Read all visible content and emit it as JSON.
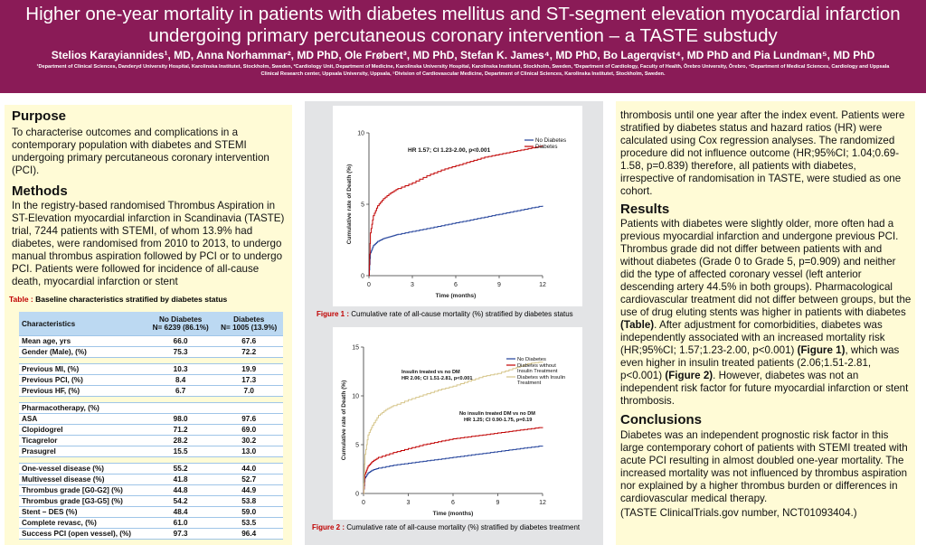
{
  "header": {
    "title": "Higher one-year mortality in patients with diabetes mellitus and ST-segment elevation myocardial infarction undergoing primary percutaneous coronary intervention – a TASTE substudy",
    "authors": "Stelios Karayiannides¹, MD, Anna Norhammar², MD PhD, Ole Frøbert³, MD PhD, Stefan K. James⁴, MD PhD, Bo Lagerqvist⁴, MD PhD and Pia Lundman⁵, MD PhD",
    "affiliations": "¹Department of Clinical Sciences, Danderyd University Hospital, Karolinska Institutet, Stockholm, Sweden, ²Cardiology Unit, Department of Medicine, Karolinska University Hospital, Karolinska Institutet, Stockholm, Sweden, ³Department of Cardiology, Faculty of Health, Örebro University, Örebro, ⁴Department of Medical Sciences, Cardiology and Uppsala Clinical Research center, Uppsala University, Uppsala, ⁵Division of Cardiovascular Medicine, Department of Clinical Sciences, Karolinska Institutet, Stockholm, Sweden."
  },
  "purpose": {
    "heading": "Purpose",
    "text": "To characterise outcomes and complications in a contemporary population with diabetes and STEMI undergoing primary percutaneous coronary intervention (PCI)."
  },
  "methods": {
    "heading": "Methods",
    "text": "In the registry-based randomised Thrombus Aspiration in ST-Elevation myocardial infarction in Scandinavia (TASTE) trial, 7244 patients with STEMI, of whom 13.9% had diabetes, were randomised from 2010 to 2013, to undergo manual thrombus aspiration followed by PCI or to undergo PCI. Patients were followed for incidence of all-cause death, myocardial infarction or stent",
    "continued": "thrombosis until one year after the index event. Patients were stratified by diabetes status and hazard ratios (HR) were calculated using Cox regression analyses. The randomized procedure did not influence outcome (HR;95%CI; 1.04;0.69-1.58, p=0.839) therefore, all patients with diabetes, irrespective of randomisation in TASTE, were studied as one cohort."
  },
  "table": {
    "caption_label": "Table :",
    "caption_text": "Baseline characteristics stratified by diabetes status",
    "col_char": "Characteristics",
    "col_nodm": "No Diabetes",
    "col_nodm_n": "N= 6239 (86.1%)",
    "col_dm": "Diabetes",
    "col_dm_n": "N= 1005 (13.9%)",
    "rows": [
      {
        "label": "Mean age, yrs",
        "a": "66.0",
        "b": "67.6"
      },
      {
        "label": "Gender (Male), (%)",
        "a": "75.3",
        "b": "72.2"
      },
      {
        "label": "",
        "a": "",
        "b": ""
      },
      {
        "label": "Previous MI, (%)",
        "a": "10.3",
        "b": "19.9"
      },
      {
        "label": "Previous PCI, (%)",
        "a": "8.4",
        "b": "17.3"
      },
      {
        "label": "Previous HF, (%)",
        "a": "6.7",
        "b": "7.0"
      },
      {
        "label": "",
        "a": "",
        "b": ""
      },
      {
        "label": "Pharmacotherapy, (%)",
        "a": "",
        "b": ""
      },
      {
        "label": "ASA",
        "a": "98.0",
        "b": "97.6"
      },
      {
        "label": "Clopidogrel",
        "a": "71.2",
        "b": "69.0"
      },
      {
        "label": "Ticagrelor",
        "a": "28.2",
        "b": "30.2"
      },
      {
        "label": "Prasugrel",
        "a": "15.5",
        "b": "13.0"
      },
      {
        "label": "",
        "a": "",
        "b": ""
      },
      {
        "label": "One-vessel disease (%)",
        "a": "55.2",
        "b": "44.0"
      },
      {
        "label": "Multivessel disease (%)",
        "a": "41.8",
        "b": "52.7"
      },
      {
        "label": "Thrombus grade [G0-G2] (%)",
        "a": "44.8",
        "b": "44.9"
      },
      {
        "label": "Thrombus grade [G3-G5] (%)",
        "a": "54.2",
        "b": "53.8"
      },
      {
        "label": "Stent – DES (%)",
        "a": "48.4",
        "b": "59.0"
      },
      {
        "label": "Complete revasc, (%)",
        "a": "61.0",
        "b": "53.5"
      },
      {
        "label": "Success PCI (open vessel), (%)",
        "a": "97.3",
        "b": "96.4"
      }
    ]
  },
  "figure1": {
    "caption_label": "Figure 1 :",
    "caption_text": "Cumulative rate of all-cause mortality (%) stratified by diabetes status"
  },
  "figure2": {
    "caption_label": "Figure 2 :",
    "caption_text": "Cumulative rate of all-cause mortality (%) stratified by diabetes treatment"
  },
  "results": {
    "heading": "Results",
    "text_1": "Patients with diabetes were slightly older, more often had a previous myocardial infarction and undergone previous PCI. Thrombus grade did not differ between patients with and without diabetes (Grade 0 to Grade 5, p=0.909) and neither did the type of affected coronary vessel (left anterior descending artery 44.5% in both groups). Pharmacological cardiovascular treatment did not differ between groups, but the use of drug eluting stents was higher in patients with diabetes ",
    "table_ref": "(Table)",
    "text_2": ". After adjustment for comorbidities, diabetes was independently associated with an increased mortality risk (HR;95%CI; 1.57;1.23-2.00, p<0.001) ",
    "fig1_ref": "(Figure 1)",
    "text_3": ", which was even higher in insulin treated patients (2.06;1.51-2.81, p<0.001) ",
    "fig2_ref": "(Figure 2)",
    "text_4": ". However, diabetes was not an independent risk factor for future myocardial infarction or stent thrombosis."
  },
  "conclusions": {
    "heading": "Conclusions",
    "text": "Diabetes was an independent prognostic risk factor in this large contemporary cohort of patients with STEMI treated with acute PCI resulting in almost doubled one-year mortality. The increased mortality was not influenced by thrombus aspiration nor explained by a higher thrombus burden or differences in cardiovascular medical therapy.",
    "trial": "(TASTE ClinicalTrials.gov number, NCT01093404.)"
  },
  "chart_data": [
    {
      "type": "line",
      "xlabel": "Time (months)",
      "ylabel": "Cumulative rate of Death (%)",
      "xticks": [
        "0",
        "3",
        "6",
        "9",
        "12"
      ],
      "yticks": [
        "0",
        "5",
        "10"
      ],
      "xlim": [
        0,
        12
      ],
      "ylim": [
        0,
        10
      ],
      "annotation": "HR 1.57; CI 1.23-2.00, p<0.001",
      "legend_position": "top-right",
      "series": [
        {
          "name": "No Diabetes",
          "color": "#1f3f99",
          "x": [
            0,
            0.1,
            0.3,
            0.6,
            1,
            1.5,
            2,
            3,
            4,
            5,
            6,
            7,
            8,
            9,
            10,
            11,
            12
          ],
          "y": [
            0,
            1.6,
            2.1,
            2.4,
            2.6,
            2.75,
            2.9,
            3.1,
            3.3,
            3.5,
            3.7,
            3.9,
            4.1,
            4.3,
            4.5,
            4.7,
            4.9
          ]
        },
        {
          "name": "Diabetes",
          "color": "#c00000",
          "x": [
            0,
            0.1,
            0.3,
            0.6,
            1,
            1.5,
            2,
            3,
            4,
            5,
            6,
            7,
            8,
            9,
            10,
            11,
            12
          ],
          "y": [
            0,
            3.0,
            4.2,
            4.9,
            5.4,
            5.8,
            6.1,
            6.5,
            7.0,
            7.4,
            7.7,
            8.0,
            8.3,
            8.5,
            8.7,
            8.9,
            9.1
          ]
        }
      ]
    },
    {
      "type": "line",
      "xlabel": "Time (months)",
      "ylabel": "Cumulative rate of Death (%)",
      "xticks": [
        "0",
        "3",
        "6",
        "9",
        "12"
      ],
      "yticks": [
        "0",
        "5",
        "10",
        "15"
      ],
      "xlim": [
        0,
        12
      ],
      "ylim": [
        0,
        15
      ],
      "annotations": [
        {
          "line1": "Insulin treated vs no DM",
          "line2": "HR 2.06; CI 1.51-2.81, p<0.001"
        },
        {
          "line1": "No insulin treated DM vs no DM",
          "line2": "HR 1.25; CI 0.90-1.75, p=0.19"
        }
      ],
      "legend_position": "top-right",
      "series": [
        {
          "name": "No Diabetes",
          "color": "#1f3f99",
          "x": [
            0,
            0.1,
            0.3,
            0.6,
            1,
            2,
            3,
            4,
            5,
            6,
            7,
            8,
            9,
            10,
            11,
            12
          ],
          "y": [
            0,
            1.6,
            2.1,
            2.4,
            2.6,
            2.9,
            3.1,
            3.3,
            3.5,
            3.7,
            3.9,
            4.1,
            4.3,
            4.5,
            4.7,
            4.9
          ]
        },
        {
          "name": "Diabetes without Insulin Treatment",
          "color": "#c00000",
          "x": [
            0,
            0.1,
            0.3,
            0.6,
            1,
            2,
            3,
            4,
            5,
            6,
            7,
            8,
            9,
            10,
            11,
            12
          ],
          "y": [
            0,
            2.0,
            2.8,
            3.3,
            3.7,
            4.2,
            4.6,
            5.0,
            5.3,
            5.6,
            5.8,
            6.0,
            6.2,
            6.4,
            6.6,
            6.8
          ]
        },
        {
          "name": "Diabetes with Insulin Treatment",
          "color": "#d6c58a",
          "x": [
            0,
            0.1,
            0.3,
            0.6,
            1,
            1.5,
            2,
            3,
            4,
            5,
            6,
            7,
            8,
            9,
            10,
            11,
            12
          ],
          "y": [
            0,
            4.0,
            6.0,
            7.0,
            8.0,
            8.6,
            9.0,
            9.6,
            10.1,
            10.6,
            11.0,
            11.5,
            12.0,
            12.3,
            12.8,
            13.3,
            13.5
          ]
        }
      ]
    }
  ]
}
